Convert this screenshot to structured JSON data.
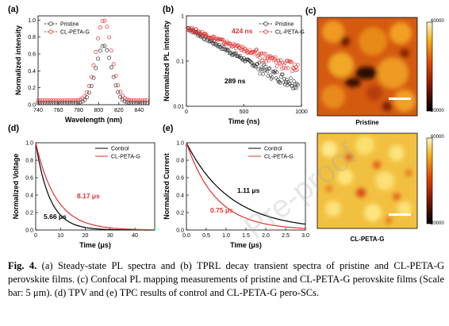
{
  "figure": {
    "panels": {
      "a": {
        "label": "(a)"
      },
      "b": {
        "label": "(b)"
      },
      "c": {
        "label": "(c)"
      },
      "d": {
        "label": "(d)"
      },
      "e": {
        "label": "(e)"
      }
    },
    "maps": {
      "top_label": "Pristine",
      "bottom_label": "CL-PETA-G",
      "colorbar_max": "60000",
      "colorbar_min": "20000",
      "scale_bar": "5 μm"
    },
    "caption": {
      "lead": "Fig. 4.",
      "text": "(a) Steady-state PL spectra and (b) TPRL decay transient spectra of pristine and CL-PETA-G perovskite films. (c) Confocal PL mapping measurements of pristine and CL-PETA-G perovskite films (Scale bar: 5 μm). (d) TPV and (e) TPC results of control and CL-PETA-G pero-SCs."
    },
    "watermark": "Pre-proof"
  },
  "chart_data": [
    {
      "panel": "a",
      "type": "line",
      "xlabel": "Wavelength (nm)",
      "ylabel": "Normalized intensity",
      "xlim": [
        740,
        850
      ],
      "ylim": [
        0.0,
        1.05
      ],
      "xticks": [
        740,
        760,
        780,
        800,
        820,
        840
      ],
      "yticks": [
        0.0,
        0.2,
        0.4,
        0.6,
        0.8,
        1.0
      ],
      "ytick_labels": [
        "0.0",
        "0.2",
        "0.4",
        "0.6",
        "0.8",
        "1.0"
      ],
      "legend": "top-left",
      "series": [
        {
          "name": "Pristine",
          "color": "#333333",
          "marker": "circle-open",
          "peak_x": 805,
          "peak_y": 0.7,
          "width": 11,
          "baseline": 0.02
        },
        {
          "name": "CL-PETA-G",
          "color": "#e03030",
          "marker": "circle-open",
          "peak_x": 805,
          "peak_y": 1.0,
          "width": 11,
          "baseline": 0.05
        }
      ]
    },
    {
      "panel": "b",
      "type": "scatter",
      "xlabel": "Time (ns)",
      "ylabel": "Normalized PL intensity",
      "xlim": [
        0,
        1000
      ],
      "ylim_log": [
        0.01,
        1
      ],
      "yscale": "log",
      "xticks": [
        0,
        500,
        1000
      ],
      "yticks": [
        0.01,
        0.1,
        1
      ],
      "ytick_labels": [
        "0.01",
        "0.1",
        "1"
      ],
      "legend": "top-right",
      "series": [
        {
          "name": "Pristine",
          "color": "#333333",
          "tau_ns": 289,
          "amp": 0.55
        },
        {
          "name": "CL-PETA-G",
          "color": "#e03030",
          "tau_ns": 424,
          "amp": 0.55
        }
      ],
      "annotations": [
        {
          "text": "424 ns",
          "color": "#e03030"
        },
        {
          "text": "289 ns",
          "color": "#000000"
        }
      ]
    },
    {
      "panel": "d",
      "type": "line",
      "xlabel": "Time (μs)",
      "ylabel": "Normalized Voltage",
      "xlim": [
        0,
        48
      ],
      "ylim": [
        0.0,
        1.0
      ],
      "xticks": [
        0,
        10,
        20,
        30,
        40
      ],
      "yticks": [
        0.0,
        0.2,
        0.4,
        0.6,
        0.8,
        1.0
      ],
      "ytick_labels": [
        "0.0",
        "0.2",
        "0.4",
        "0.6",
        "0.8",
        "1.0"
      ],
      "legend": "top-right",
      "series": [
        {
          "name": "Control",
          "color": "#000000",
          "tau": 5.66
        },
        {
          "name": "CL-PETA-G",
          "color": "#e03030",
          "tau": 8.17
        }
      ],
      "annotations": [
        {
          "text": "8.17 μs",
          "color": "#e03030"
        },
        {
          "text": "5.66 μs",
          "color": "#000000"
        }
      ]
    },
    {
      "panel": "e",
      "type": "line",
      "xlabel": "Time (μs)",
      "ylabel": "Normalized Current",
      "xlim": [
        0,
        3.0
      ],
      "ylim": [
        0.0,
        1.0
      ],
      "xticks": [
        0.0,
        0.5,
        1.0,
        1.5,
        2.0,
        2.5,
        3.0
      ],
      "xtick_labels": [
        "0.0",
        "0.5",
        "1.0",
        "1.5",
        "2.0",
        "2.5",
        "3.0"
      ],
      "yticks": [
        0.0,
        0.2,
        0.4,
        0.6,
        0.8,
        1.0
      ],
      "ytick_labels": [
        "0.0",
        "0.2",
        "0.4",
        "0.6",
        "0.8",
        "1.0"
      ],
      "legend": "top-right",
      "series": [
        {
          "name": "Control",
          "color": "#000000",
          "tau": 1.11
        },
        {
          "name": "CL-PETA-G",
          "color": "#e03030",
          "tau": 0.75
        }
      ],
      "annotations": [
        {
          "text": "1.11 μs",
          "color": "#000000"
        },
        {
          "text": "0.75 μs",
          "color": "#e03030"
        }
      ]
    }
  ]
}
